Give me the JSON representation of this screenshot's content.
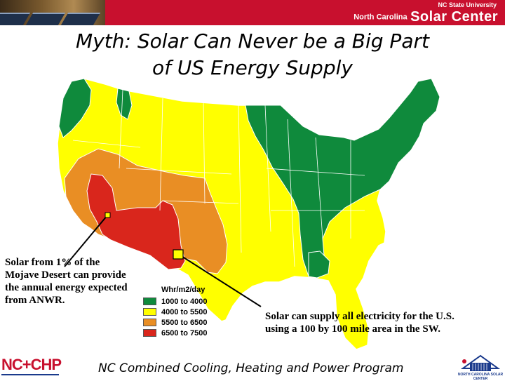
{
  "header": {
    "university": "NC State University",
    "center_prefix": "North Carolina",
    "center_name": "Solar Center"
  },
  "title": {
    "line1": "Myth: Solar Can Never be a Big Part",
    "line2": "of US Energy Supply"
  },
  "legend": {
    "title": "Whr/m2/day",
    "items": [
      {
        "label": "1000 to 4000",
        "color": "#0f8a3c"
      },
      {
        "label": "4000 to 5500",
        "color": "#ffff00"
      },
      {
        "label": "5500 to 6500",
        "color": "#e98e24"
      },
      {
        "label": "6500 to 7500",
        "color": "#d9261c"
      }
    ]
  },
  "callouts": {
    "left": "Solar from 1% of the Mojave Desert can provide the annual energy expected from ANWR.",
    "right": "Solar can supply all electricity for the U.S. using a 100 by 100 mile area in the SW."
  },
  "footer": {
    "text": "NC Combined Cooling, Heating and Power Program"
  },
  "logos": {
    "left": "NC+CHP",
    "right": "NORTH CAROLINA SOLAR CENTER"
  },
  "colors": {
    "banner": "#c8102e",
    "state_border": "#ffffff",
    "marker_fill": "#ffff00",
    "marker_stroke": "#000000"
  }
}
